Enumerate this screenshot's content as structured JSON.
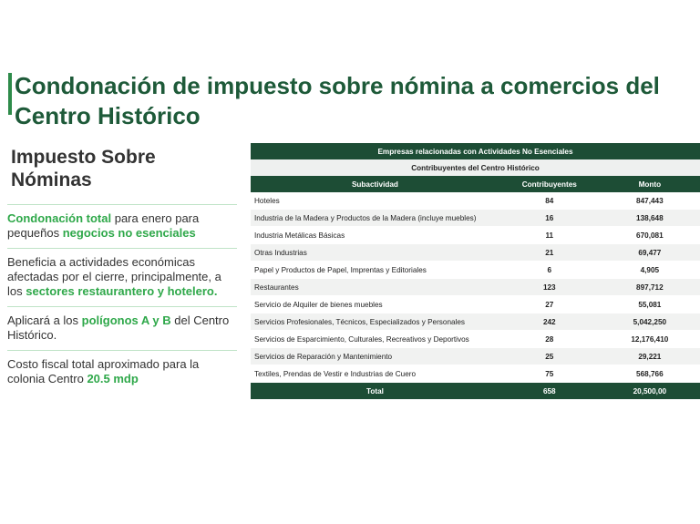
{
  "title": "Condonación de impuesto sobre nómina a comercios del Centro Histórico",
  "left_panel": {
    "heading": "Impuesto Sobre Nóminas",
    "paragraphs": [
      [
        {
          "text": "Condonación total",
          "highlight": true
        },
        {
          "text": " para enero para pequeños "
        },
        {
          "text": "negocios no esenciales",
          "highlight": true
        }
      ],
      [
        {
          "text": "Beneficia a actividades económicas afectadas por el cierre, principalmente, a los "
        },
        {
          "text": "sectores restaurantero y hotelero.",
          "highlight": true
        }
      ],
      [
        {
          "text": "Aplicará a los "
        },
        {
          "text": "polígonos A y B",
          "highlight": true
        },
        {
          "text": " del Centro Histórico."
        }
      ],
      [
        {
          "text": "Costo fiscal total aproximado para la colonia Centro "
        },
        {
          "text": "20.5 mdp",
          "highlight": true
        }
      ]
    ]
  },
  "table": {
    "caption": "Empresas relacionadas con Actividades No Esenciales",
    "subcaption": "Contribuyentes del Centro Histórico",
    "columns": [
      "Subactividad",
      "Contribuyentes",
      "Monto"
    ],
    "rows": [
      [
        "Hoteles",
        "84",
        "847,443"
      ],
      [
        "Industria de la Madera y Productos de la Madera (incluye muebles)",
        "16",
        "138,648"
      ],
      [
        "Industria Metálicas Básicas",
        "11",
        "670,081"
      ],
      [
        "Otras Industrias",
        "21",
        "69,477"
      ],
      [
        "Papel y Productos de Papel, Imprentas y Editoriales",
        "6",
        "4,905"
      ],
      [
        "Restaurantes",
        "123",
        "897,712"
      ],
      [
        "Servicio de Alquiler de bienes muebles",
        "27",
        "55,081"
      ],
      [
        "Servicios Profesionales, Técnicos, Especializados y Personales",
        "242",
        "5,042,250"
      ],
      [
        "Servicios de Esparcimiento, Culturales, Recreativos y Deportivos",
        "28",
        "12,176,410"
      ],
      [
        "Servicios de Reparación y Mantenimiento",
        "25",
        "29,221"
      ],
      [
        "Textiles, Prendas de Vestir e Industrias de Cuero",
        "75",
        "568,766"
      ]
    ],
    "total": [
      "Total",
      "658",
      "20,500,00"
    ]
  }
}
